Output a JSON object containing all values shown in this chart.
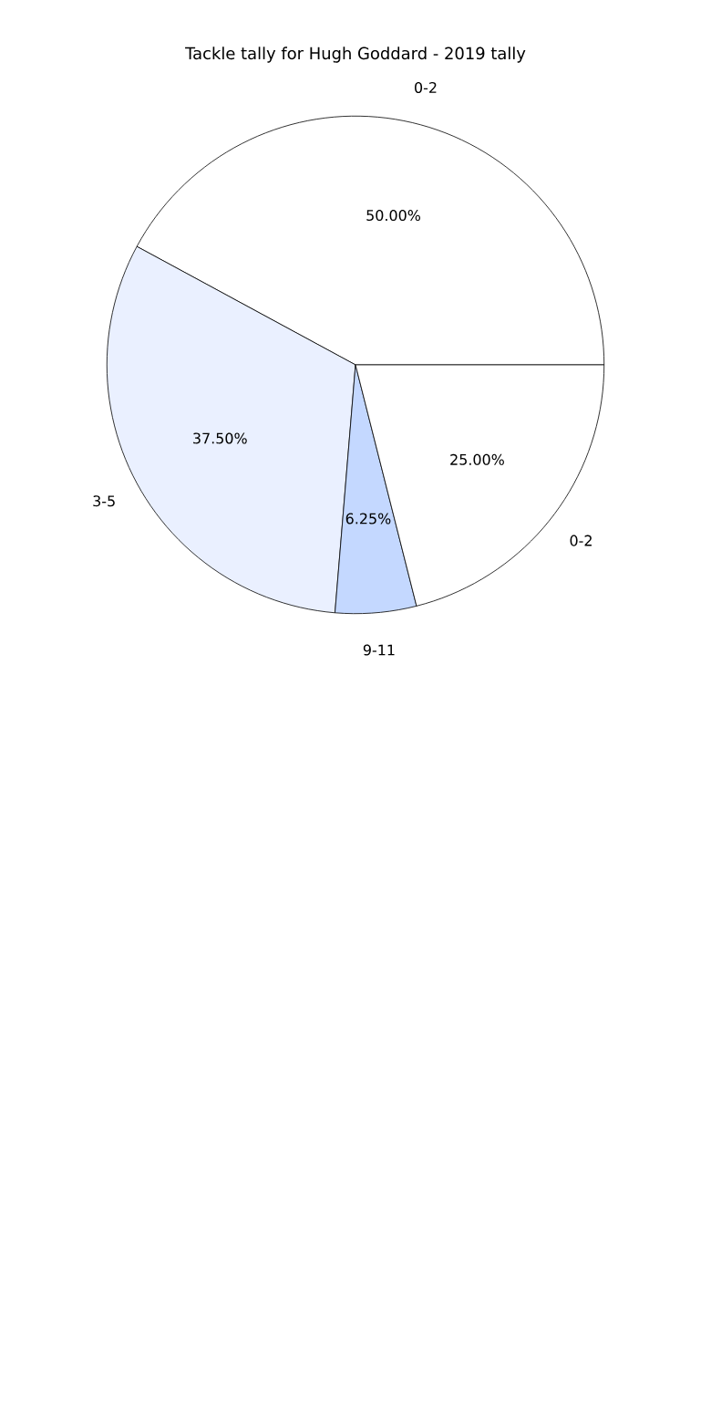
{
  "chart_data": {
    "type": "pie",
    "title": "Tackle tally for Hugh Goddard - 2019 tally",
    "categories": [
      "0-2",
      "3-5",
      "9-11",
      "0-2"
    ],
    "values": [
      50,
      37.5,
      6.25,
      25
    ],
    "value_labels": [
      "50.00%",
      "37.50%",
      "6.25%",
      "25.00%"
    ],
    "colors": [
      "#ffffff",
      "#eaf0ff",
      "#c4d8ff",
      "#ffffff"
    ]
  }
}
